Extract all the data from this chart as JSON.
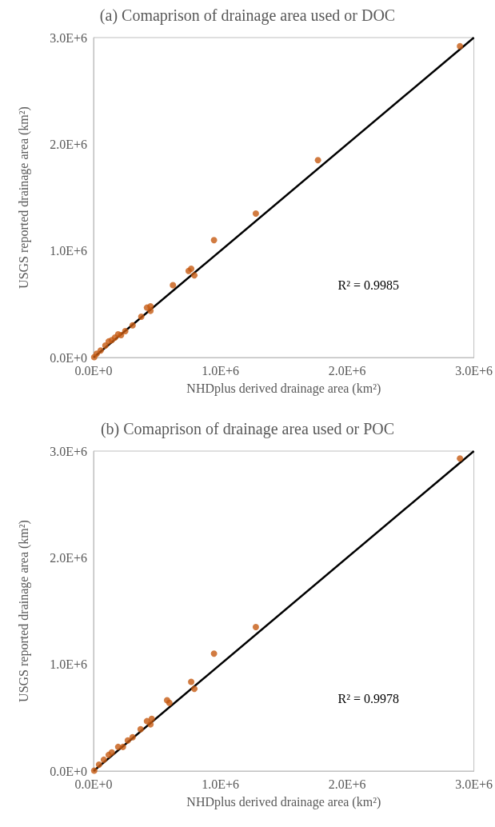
{
  "chart_data": [
    {
      "type": "scatter",
      "title": "(a) Comaprison of drainage area used or DOC",
      "xlabel": "NHDplus derived drainage area (km²)",
      "ylabel": "USGS reported drainage area (km²)",
      "annotations": [
        "R² = 0.9985"
      ],
      "grid": false,
      "xlim": [
        0,
        3000000
      ],
      "ylim": [
        0,
        3000000
      ],
      "xticks": [
        {
          "value": 0,
          "label": "0.0E+0"
        },
        {
          "value": 1000000,
          "label": "1.0E+6"
        },
        {
          "value": 2000000,
          "label": "2.0E+6"
        },
        {
          "value": 3000000,
          "label": "3.0E+6"
        }
      ],
      "yticks": [
        {
          "value": 0,
          "label": "0.0E+0"
        },
        {
          "value": 1000000,
          "label": "1.0E+6"
        },
        {
          "value": 2000000,
          "label": "2.0E+6"
        },
        {
          "value": 3000000,
          "label": "3.0E+6"
        }
      ],
      "series": [
        {
          "marker": "circle",
          "color": "#c55a11",
          "x": [
            2890000,
            1770000,
            1280000,
            950000,
            770000,
            750000,
            795000,
            626000,
            421000,
            449000,
            449000,
            376000,
            308000,
            250000,
            194000,
            217000,
            169000,
            144000,
            119000,
            93000,
            56000,
            25000,
            5000
          ],
          "values": [
            2920000,
            1850000,
            1350000,
            1100000,
            833000,
            812000,
            770000,
            679000,
            468000,
            480000,
            438000,
            383000,
            302000,
            248000,
            217000,
            210000,
            187000,
            163000,
            151000,
            112000,
            66000,
            36000,
            4000
          ]
        },
        {
          "type": "line",
          "color": "#000000",
          "x": [
            0,
            3000000
          ],
          "values": [
            0,
            3000000
          ]
        }
      ]
    },
    {
      "type": "scatter",
      "title": "(b) Comaprison of drainage area used or POC",
      "xlabel": "NHDplus derived drainage area (km²)",
      "ylabel": "USGS reported drainage area (km²)",
      "annotations": [
        "R² = 0.9978"
      ],
      "grid": false,
      "xlim": [
        0,
        3000000
      ],
      "ylim": [
        0,
        3000000
      ],
      "xticks": [
        {
          "value": 0,
          "label": "0.0E+0"
        },
        {
          "value": 1000000,
          "label": "1.0E+6"
        },
        {
          "value": 2000000,
          "label": "2.0E+6"
        },
        {
          "value": 3000000,
          "label": "3.0E+6"
        }
      ],
      "yticks": [
        {
          "value": 0,
          "label": "0.0E+0"
        },
        {
          "value": 1000000,
          "label": "1.0E+6"
        },
        {
          "value": 2000000,
          "label": "2.0E+6"
        },
        {
          "value": 3000000,
          "label": "3.0E+6"
        }
      ],
      "series": [
        {
          "marker": "circle",
          "color": "#c55a11",
          "x": [
            2890000,
            1280000,
            950000,
            770000,
            795000,
            580000,
            598000,
            421000,
            459000,
            449000,
            371000,
            308000,
            270000,
            232000,
            194000,
            144000,
            119000,
            81000,
            43000,
            5000
          ],
          "values": [
            2930000,
            1350000,
            1100000,
            836000,
            770000,
            664000,
            640000,
            468000,
            489000,
            438000,
            392000,
            317000,
            287000,
            226000,
            226000,
            175000,
            151000,
            106000,
            60000,
            4000
          ]
        },
        {
          "type": "line",
          "color": "#000000",
          "x": [
            0,
            3000000
          ],
          "values": [
            0,
            3000000
          ]
        }
      ]
    }
  ]
}
